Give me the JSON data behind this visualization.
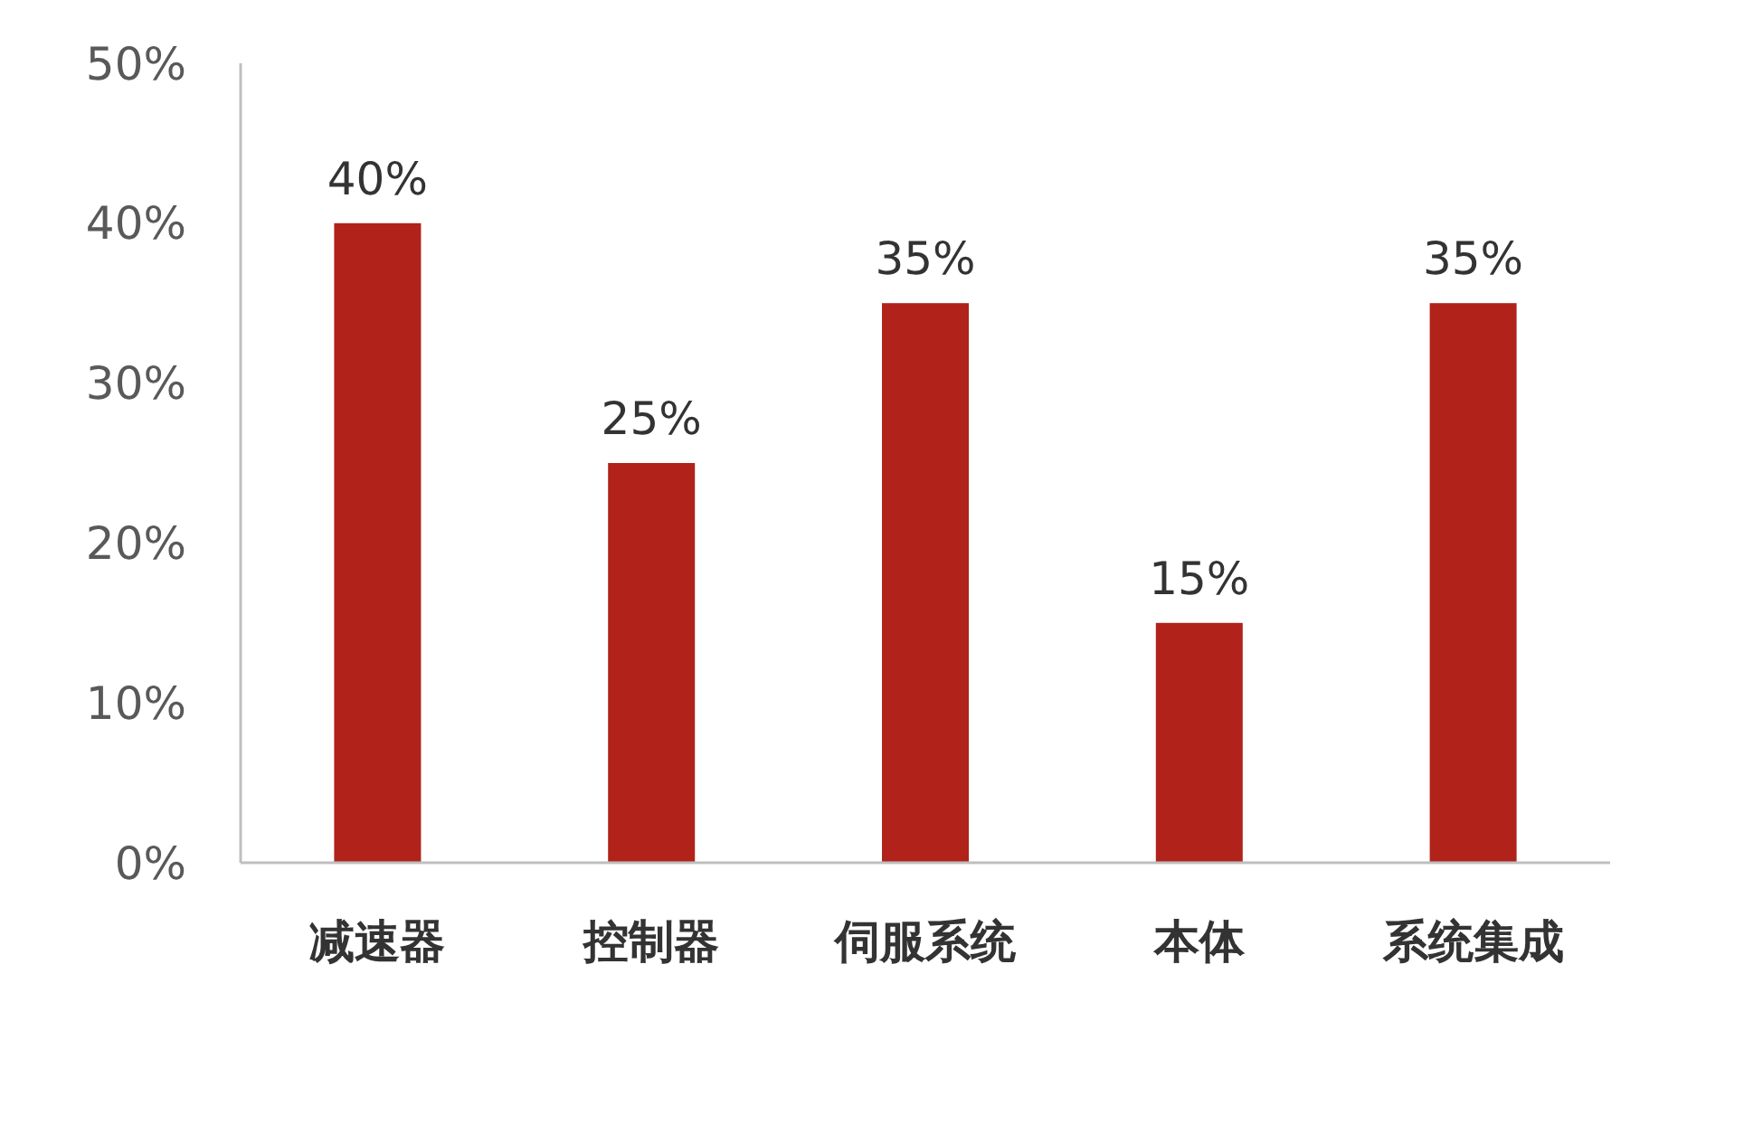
{
  "chart_data": {
    "type": "bar",
    "categories": [
      "减速器",
      "控制器",
      "伺服系统",
      "本体",
      "系统集成"
    ],
    "values": [
      40,
      25,
      35,
      15,
      35
    ],
    "value_labels": [
      "40%",
      "25%",
      "35%",
      "15%",
      "35%"
    ],
    "color": "#b0221a",
    "ylim": [
      0,
      50
    ],
    "yticks": [
      {
        "value": 0,
        "label": "0%"
      },
      {
        "value": 10,
        "label": "10%"
      },
      {
        "value": 20,
        "label": "20%"
      },
      {
        "value": 30,
        "label": "30%"
      },
      {
        "value": 40,
        "label": "40%"
      },
      {
        "value": 50,
        "label": "50%"
      }
    ],
    "grid": false
  }
}
